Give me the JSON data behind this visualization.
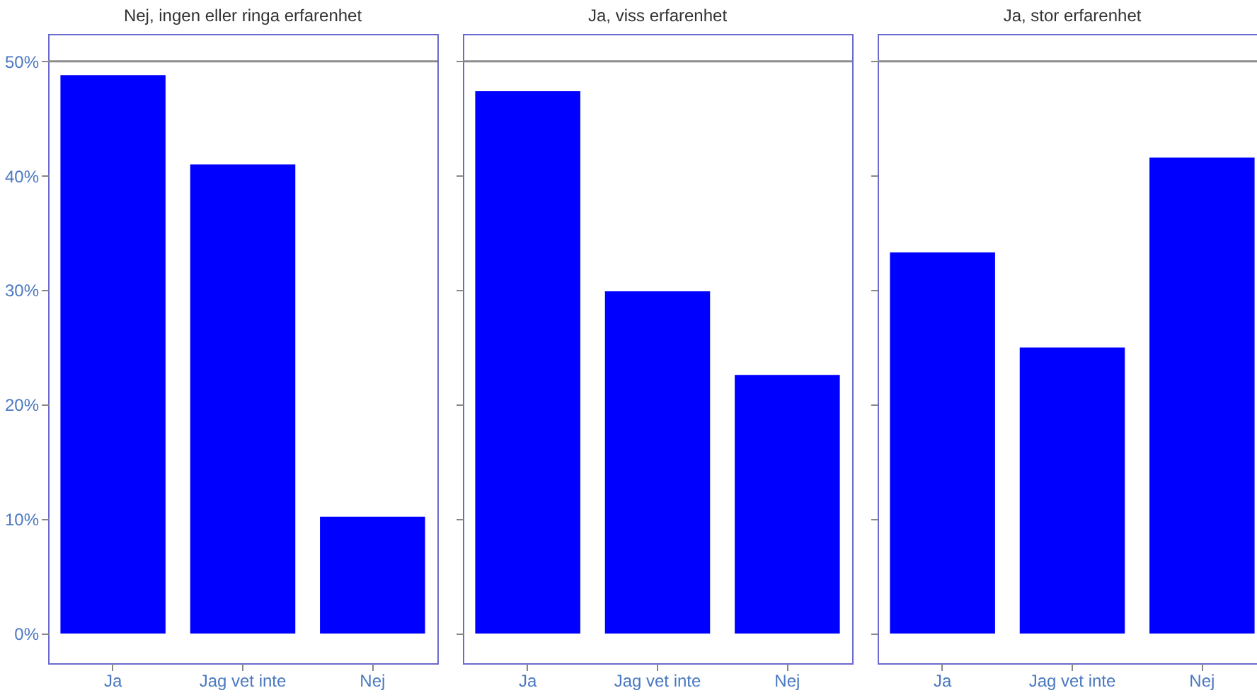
{
  "chart_data": [
    {
      "type": "bar",
      "title": "Nej, ingen eller ringa erfarenhet",
      "categories": [
        "Ja",
        "Jag vet inte",
        "Nej"
      ],
      "values": [
        48.8,
        41.0,
        10.2
      ],
      "color": "#0000ff",
      "ylim": [
        -2.6,
        52.4
      ],
      "yticks": [
        {
          "value": 0,
          "label": "0%"
        },
        {
          "value": 10,
          "label": "10%"
        },
        {
          "value": 20,
          "label": "20%"
        },
        {
          "value": 30,
          "label": "30%"
        },
        {
          "value": 40,
          "label": "40%"
        },
        {
          "value": 50,
          "label": "50%"
        }
      ],
      "grid": false,
      "ref_lines": [
        {
          "axis": "y",
          "value": 50,
          "color": "#8c8c8c"
        }
      ]
    },
    {
      "type": "bar",
      "title": "Ja, viss erfarenhet",
      "categories": [
        "Ja",
        "Jag vet inte",
        "Nej"
      ],
      "values": [
        47.4,
        29.9,
        22.6
      ],
      "color": "#0000ff",
      "ylim": [
        -2.6,
        52.4
      ],
      "yticks": [
        {
          "value": 0,
          "label": null
        },
        {
          "value": 10,
          "label": null
        },
        {
          "value": 20,
          "label": null
        },
        {
          "value": 30,
          "label": null
        },
        {
          "value": 40,
          "label": null
        },
        {
          "value": 50,
          "label": null
        }
      ],
      "tick_labels": "x",
      "grid": false,
      "ref_lines": [
        {
          "axis": "y",
          "value": 50,
          "color": "#8c8c8c"
        }
      ]
    },
    {
      "type": "bar",
      "title": "Ja, stor erfarenhet",
      "categories": [
        "Ja",
        "Jag vet inte",
        "Nej"
      ],
      "values": [
        33.3,
        25.0,
        41.6
      ],
      "color": "#0000ff",
      "ylim": [
        -2.6,
        52.4
      ],
      "yticks": [
        {
          "value": 0,
          "label": null
        },
        {
          "value": 10,
          "label": null
        },
        {
          "value": 20,
          "label": null
        },
        {
          "value": 30,
          "label": null
        },
        {
          "value": 40,
          "label": null
        },
        {
          "value": 50,
          "label": null
        }
      ],
      "tick_labels": "x",
      "grid": false,
      "ref_lines": [
        {
          "axis": "y",
          "value": 50,
          "color": "#8c8c8c"
        }
      ]
    }
  ]
}
